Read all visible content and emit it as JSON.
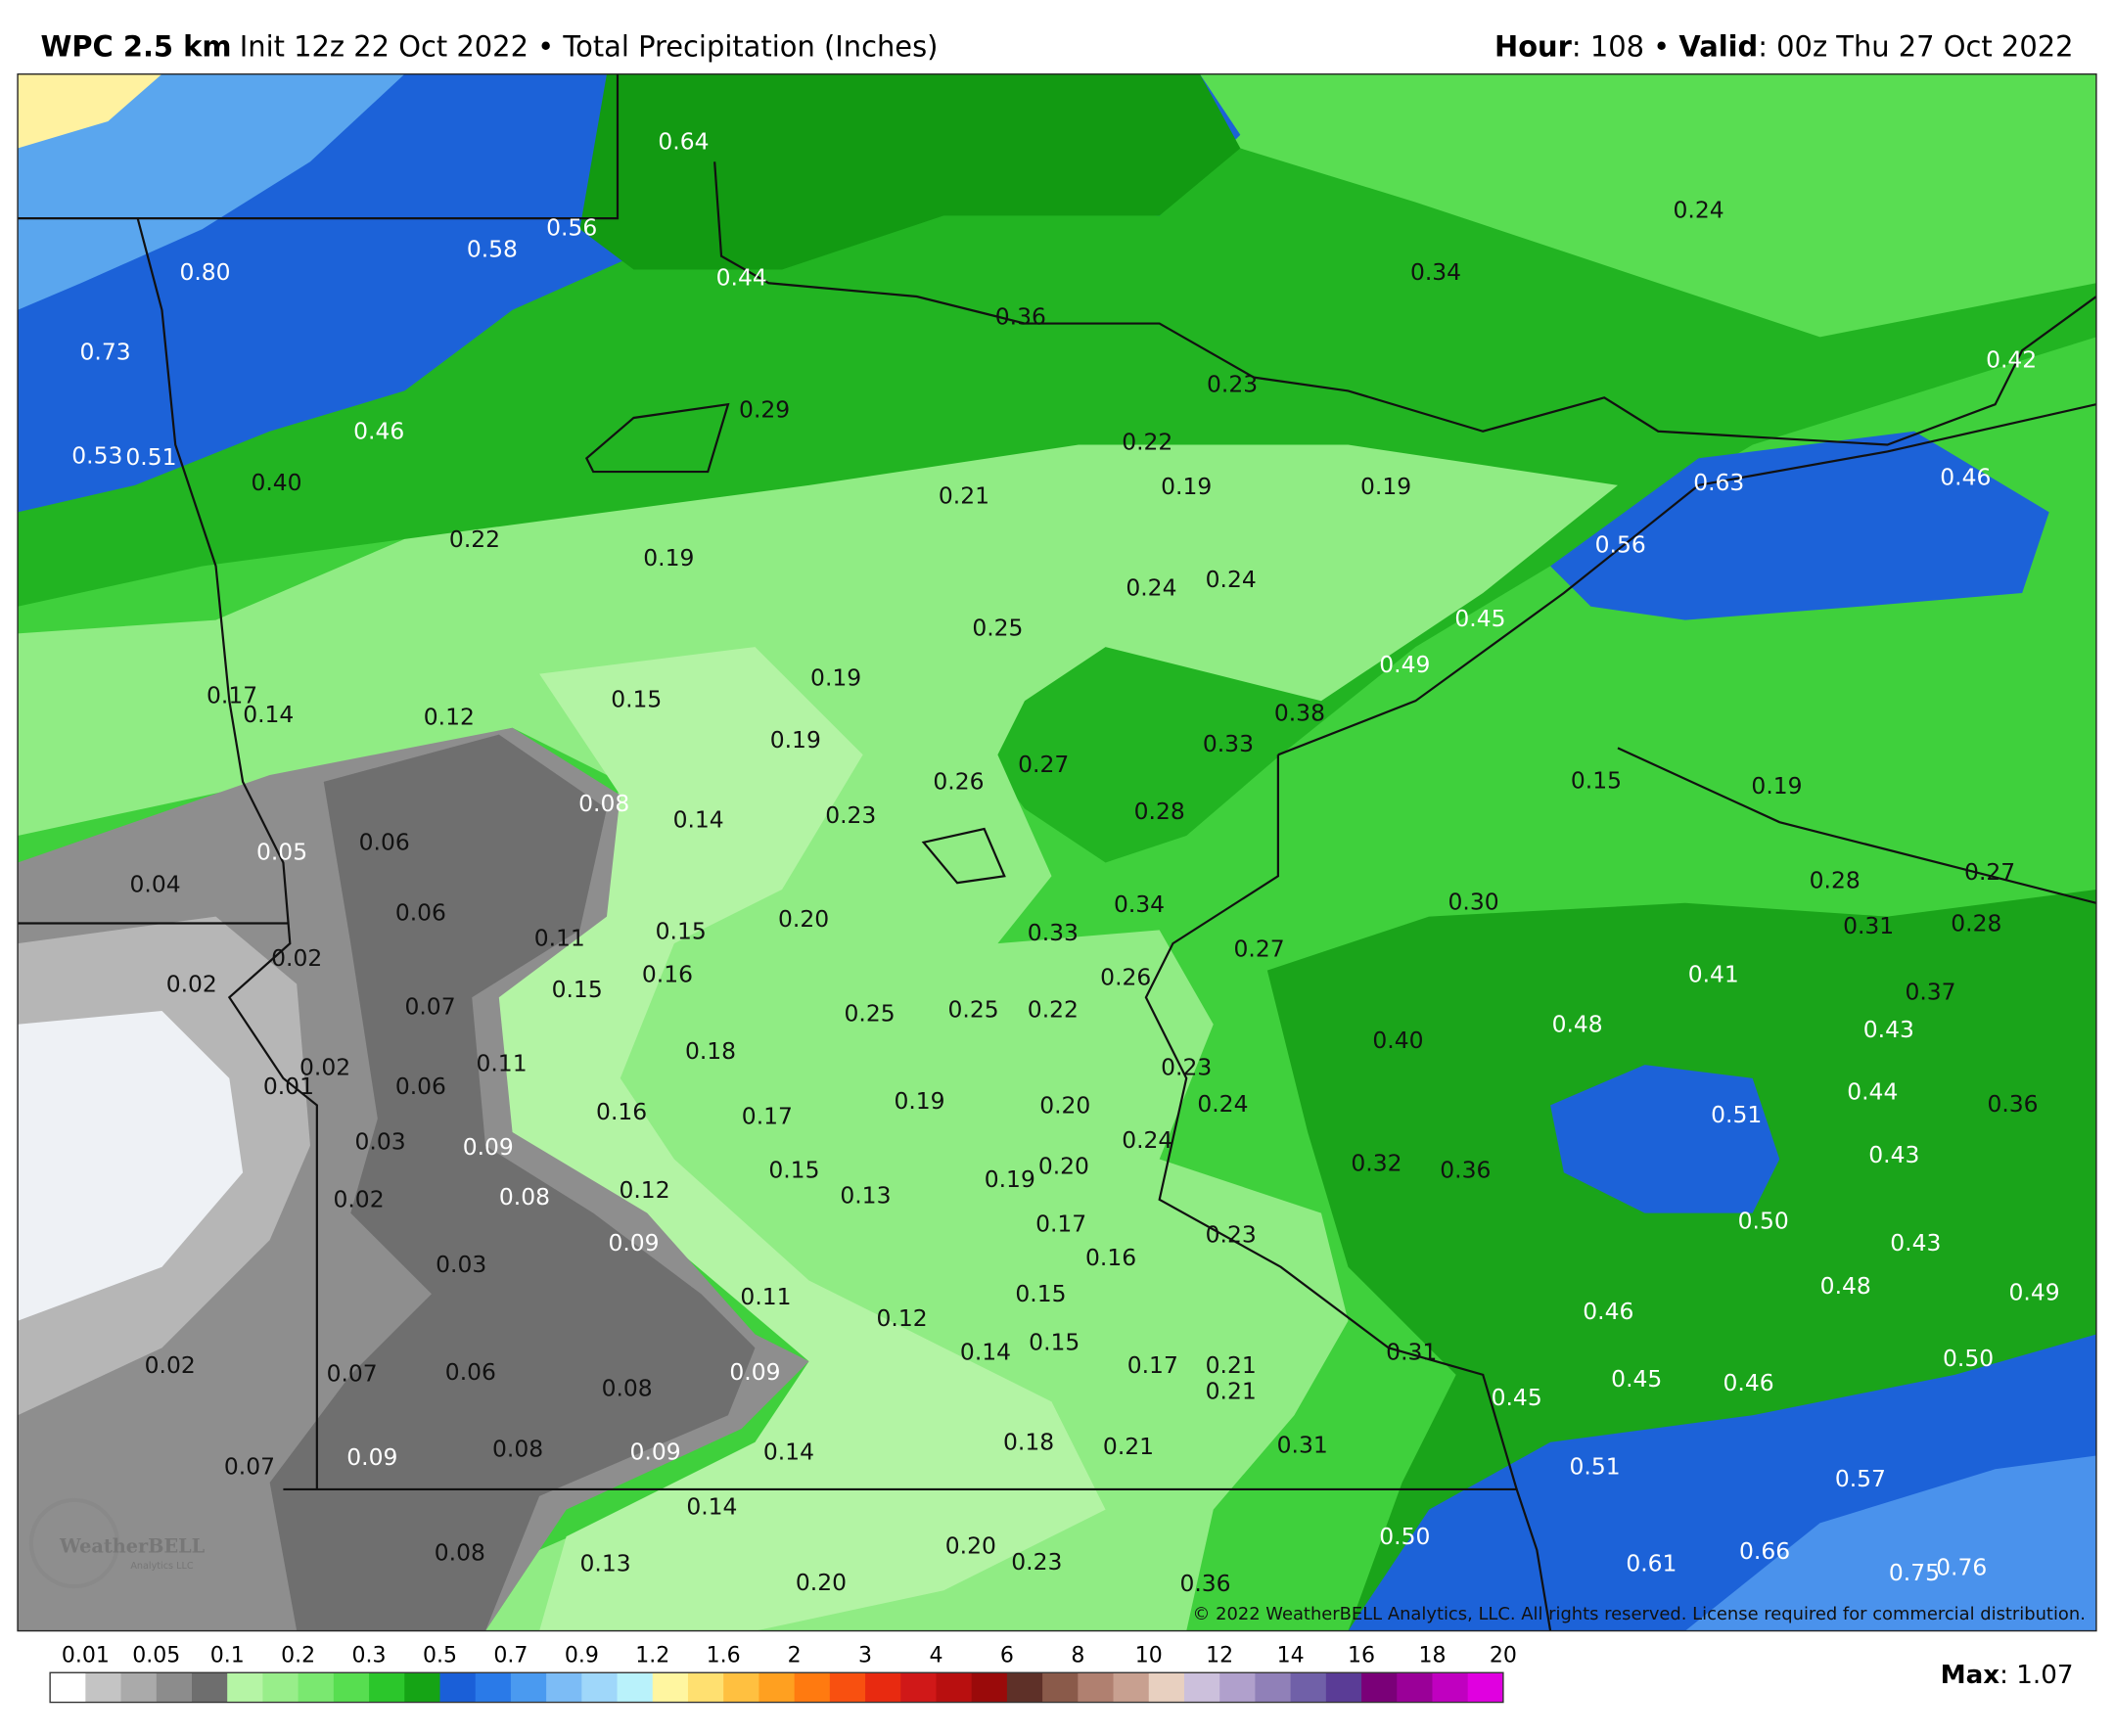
{
  "header": {
    "model": "WPC 2.5 km",
    "description": "Init 12z 22 Oct 2022 • Total Precipitation (Inches)",
    "hour_key": "Hour",
    "hour_value": ": 108 • ",
    "valid_key": "Valid",
    "valid_value": ": 00z Thu 27 Oct 2022"
  },
  "map": {
    "labels": [
      "0.64",
      "0.56",
      "0.58",
      "0.80",
      "0.44",
      "0.73",
      "0.36",
      "0.29",
      "0.46",
      "0.53",
      "0.51",
      "0.40",
      "0.22",
      "0.19",
      "0.21",
      "0.22",
      "0.19",
      "0.23",
      "0.19",
      "0.34",
      "0.24",
      "0.42",
      "0.63",
      "0.46",
      "0.56",
      "0.45",
      "0.49",
      "0.24",
      "0.24",
      "0.25",
      "0.19",
      "0.17",
      "0.14",
      "0.12",
      "0.15",
      "0.19",
      "0.38",
      "0.33",
      "0.27",
      "0.26",
      "0.23",
      "0.28",
      "0.15",
      "0.19",
      "0.08",
      "0.14",
      "0.05",
      "0.06",
      "0.04",
      "0.28",
      "0.27",
      "0.31",
      "0.28",
      "0.30",
      "0.34",
      "0.33",
      "0.06",
      "0.11",
      "0.15",
      "0.20",
      "0.27",
      "0.26",
      "0.41",
      "0.37",
      "0.02",
      "0.02",
      "0.16",
      "0.15",
      "0.07",
      "0.25",
      "0.25",
      "0.22",
      "0.48",
      "0.40",
      "0.43",
      "0.18",
      "0.11",
      "0.02",
      "0.01",
      "0.06",
      "0.23",
      "0.44",
      "0.36",
      "0.51",
      "0.16",
      "0.17",
      "0.19",
      "0.20",
      "0.24",
      "0.24",
      "0.03",
      "0.09",
      "0.43",
      "0.20",
      "0.19",
      "0.32",
      "0.36",
      "0.15",
      "0.13",
      "0.12",
      "0.08",
      "0.02",
      "0.17",
      "0.50",
      "0.23",
      "0.43",
      "0.09",
      "0.16",
      "0.03",
      "0.11",
      "0.15",
      "0.12",
      "0.48",
      "0.49",
      "0.46",
      "0.14",
      "0.15",
      "0.17",
      "0.21",
      "0.21",
      "0.31",
      "0.09",
      "0.02",
      "0.07",
      "0.06",
      "0.08",
      "0.45",
      "0.46",
      "0.50",
      "0.45",
      "0.18",
      "0.21",
      "0.31",
      "0.09",
      "0.08",
      "0.09",
      "0.14",
      "0.07",
      "0.51",
      "0.57",
      "0.14",
      "0.50",
      "0.08",
      "0.13",
      "0.20",
      "0.23",
      "0.20",
      "0.36",
      "0.61",
      "0.66",
      "0.75",
      "0.76"
    ],
    "copyright": "© 2022 WeatherBELL Analytics, LLC. All rights reserved. License required for commercial distribution.",
    "logo": "WeatherBELL",
    "logo_sub": "Analytics LLC"
  },
  "colorbar": {
    "labels": [
      "0.01",
      "0.05",
      "0.1",
      "0.2",
      "0.3",
      "0.5",
      "0.7",
      "0.9",
      "1.2",
      "1.6",
      "2",
      "3",
      "4",
      "6",
      "8",
      "10",
      "12",
      "14",
      "16",
      "18",
      "20"
    ],
    "colors": [
      "#ffffff",
      "#c4c4c4",
      "#aaaaaa",
      "#8c8c8c",
      "#6e6e6e",
      "#b5f5a5",
      "#98ee8a",
      "#7ae870",
      "#57de50",
      "#2bc62b",
      "#15a415",
      "#1a5fd8",
      "#2a7ae8",
      "#4a9af0",
      "#7cbcf6",
      "#9fd7fa",
      "#b9f2fb",
      "#fff6a0",
      "#ffe070",
      "#ffc040",
      "#ffa020",
      "#ff7a10",
      "#f85010",
      "#e82a10",
      "#d01818",
      "#b80f0f",
      "#9a0a0a",
      "#5e3028",
      "#8a5a4a",
      "#b08070",
      "#c8a090",
      "#e8d0c0",
      "#ccc0dc",
      "#b0a0cc",
      "#9080b8",
      "#7060a8",
      "#5a3c96",
      "#7a0078",
      "#9a0098",
      "#c000c0",
      "#e000e0"
    ]
  },
  "footer": {
    "max_key": "Max",
    "max_value": ": 1.07"
  }
}
